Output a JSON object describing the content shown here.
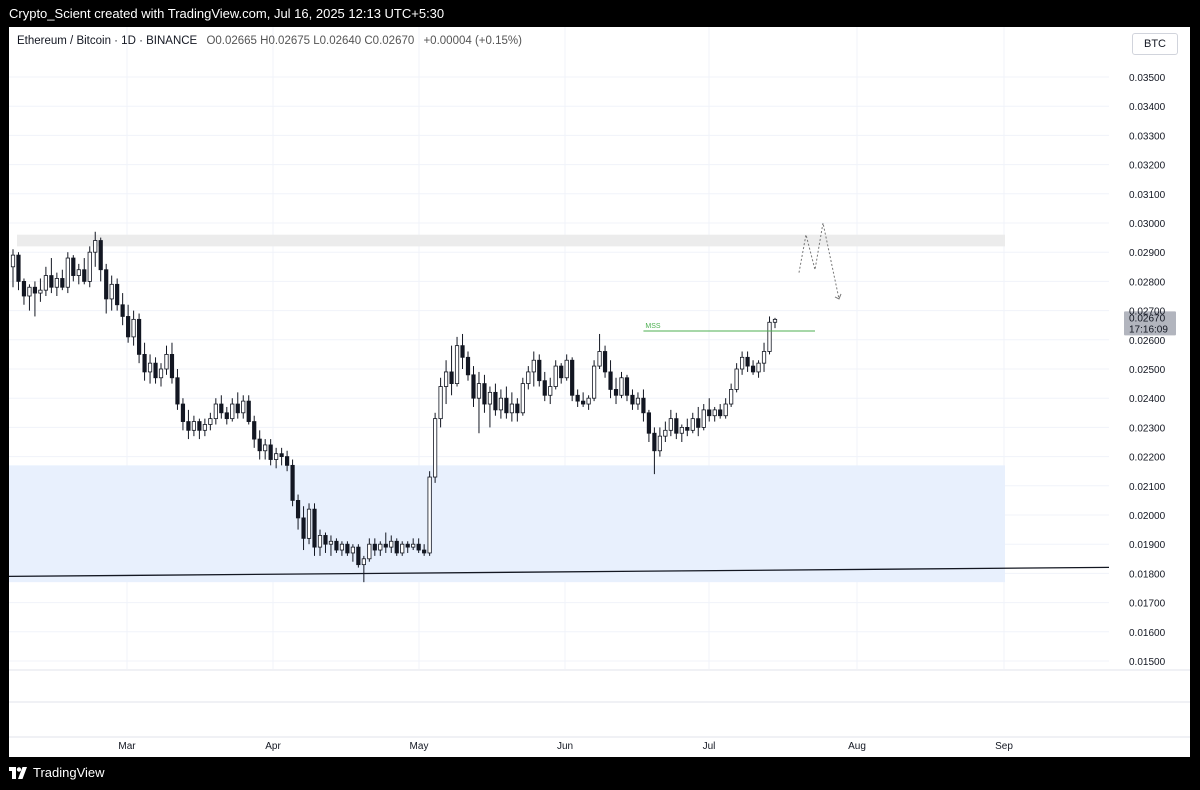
{
  "header": {
    "attribution": "Crypto_Scient created with TradingView.com, Jul 16, 2025 12:13 UTC+5:30"
  },
  "legend": {
    "symbol": "Ethereum / Bitcoin · 1D · BINANCE",
    "ohlc": "O0.02665 H0.02675 L0.02640 C0.02670",
    "change": "+0.00004 (+0.15%)"
  },
  "currency": "BTC",
  "price_label": {
    "price": "0.02670",
    "countdown": "17:16:09"
  },
  "annotation": {
    "mss": "MSS"
  },
  "footer": {
    "brand": "TradingView"
  },
  "colors": {
    "up_candle": "#ffffff",
    "down_candle": "#131722",
    "wick": "#131722",
    "zone_fill": "#e8f0fd",
    "zone_line": "#2962ff",
    "mss_line": "#4caf50",
    "grid": "#f0f3fa"
  },
  "chart_data": {
    "type": "candlestick",
    "title": "",
    "y_axis": {
      "ticks": [
        "0.03500",
        "0.03400",
        "0.03300",
        "0.03200",
        "0.03100",
        "0.03000",
        "0.02900",
        "0.02800",
        "0.02700",
        "0.02600",
        "0.02500",
        "0.02400",
        "0.02300",
        "0.02200",
        "0.02100",
        "0.02000",
        "0.01900",
        "0.01800",
        "0.01700",
        "0.01600",
        "0.01500"
      ],
      "range": [
        0.0148,
        0.0358
      ]
    },
    "x_axis": {
      "ticks": [
        "Mar",
        "Apr",
        "May",
        "Jun",
        "Jul",
        "Aug",
        "Sep"
      ]
    },
    "grid": true,
    "last_price": 0.0267,
    "candles": [
      {
        "o": 0.0285,
        "h": 0.0291,
        "l": 0.0278,
        "c": 0.0289
      },
      {
        "o": 0.0289,
        "h": 0.029,
        "l": 0.0277,
        "c": 0.028
      },
      {
        "o": 0.028,
        "h": 0.0281,
        "l": 0.0272,
        "c": 0.0275
      },
      {
        "o": 0.0275,
        "h": 0.0279,
        "l": 0.027,
        "c": 0.0278
      },
      {
        "o": 0.0278,
        "h": 0.028,
        "l": 0.0268,
        "c": 0.0276
      },
      {
        "o": 0.0276,
        "h": 0.0281,
        "l": 0.0273,
        "c": 0.0277
      },
      {
        "o": 0.0277,
        "h": 0.0285,
        "l": 0.0275,
        "c": 0.0282
      },
      {
        "o": 0.0282,
        "h": 0.0288,
        "l": 0.0276,
        "c": 0.0278
      },
      {
        "o": 0.0278,
        "h": 0.0283,
        "l": 0.0275,
        "c": 0.0281
      },
      {
        "o": 0.0281,
        "h": 0.0284,
        "l": 0.0277,
        "c": 0.0278
      },
      {
        "o": 0.0278,
        "h": 0.029,
        "l": 0.0276,
        "c": 0.0288
      },
      {
        "o": 0.0288,
        "h": 0.0289,
        "l": 0.028,
        "c": 0.0282
      },
      {
        "o": 0.0282,
        "h": 0.0286,
        "l": 0.0279,
        "c": 0.0284
      },
      {
        "o": 0.0284,
        "h": 0.0288,
        "l": 0.0279,
        "c": 0.028
      },
      {
        "o": 0.028,
        "h": 0.0292,
        "l": 0.0278,
        "c": 0.029
      },
      {
        "o": 0.029,
        "h": 0.0297,
        "l": 0.0285,
        "c": 0.0294
      },
      {
        "o": 0.0294,
        "h": 0.0295,
        "l": 0.028,
        "c": 0.0284
      },
      {
        "o": 0.0284,
        "h": 0.0286,
        "l": 0.0269,
        "c": 0.0274
      },
      {
        "o": 0.0274,
        "h": 0.0282,
        "l": 0.027,
        "c": 0.0279
      },
      {
        "o": 0.0279,
        "h": 0.0281,
        "l": 0.027,
        "c": 0.0272
      },
      {
        "o": 0.0272,
        "h": 0.0276,
        "l": 0.0265,
        "c": 0.0268
      },
      {
        "o": 0.0268,
        "h": 0.0272,
        "l": 0.0259,
        "c": 0.0261
      },
      {
        "o": 0.0261,
        "h": 0.027,
        "l": 0.0258,
        "c": 0.0267
      },
      {
        "o": 0.0267,
        "h": 0.0269,
        "l": 0.0252,
        "c": 0.0255
      },
      {
        "o": 0.0255,
        "h": 0.0259,
        "l": 0.0246,
        "c": 0.0249
      },
      {
        "o": 0.0249,
        "h": 0.0255,
        "l": 0.0245,
        "c": 0.0252
      },
      {
        "o": 0.0252,
        "h": 0.0254,
        "l": 0.0245,
        "c": 0.0247
      },
      {
        "o": 0.0247,
        "h": 0.0252,
        "l": 0.0244,
        "c": 0.025
      },
      {
        "o": 0.025,
        "h": 0.0258,
        "l": 0.0248,
        "c": 0.0255
      },
      {
        "o": 0.0255,
        "h": 0.0259,
        "l": 0.0245,
        "c": 0.0247
      },
      {
        "o": 0.0247,
        "h": 0.025,
        "l": 0.0236,
        "c": 0.0238
      },
      {
        "o": 0.0238,
        "h": 0.024,
        "l": 0.0229,
        "c": 0.0232
      },
      {
        "o": 0.0232,
        "h": 0.0236,
        "l": 0.0226,
        "c": 0.0229
      },
      {
        "o": 0.0229,
        "h": 0.0234,
        "l": 0.0227,
        "c": 0.0232
      },
      {
        "o": 0.0232,
        "h": 0.0233,
        "l": 0.0226,
        "c": 0.0229
      },
      {
        "o": 0.0229,
        "h": 0.0233,
        "l": 0.0227,
        "c": 0.0231
      },
      {
        "o": 0.0231,
        "h": 0.0235,
        "l": 0.0229,
        "c": 0.0233
      },
      {
        "o": 0.0233,
        "h": 0.024,
        "l": 0.0231,
        "c": 0.0238
      },
      {
        "o": 0.0238,
        "h": 0.0241,
        "l": 0.0233,
        "c": 0.0235
      },
      {
        "o": 0.0235,
        "h": 0.0237,
        "l": 0.0231,
        "c": 0.0233
      },
      {
        "o": 0.0233,
        "h": 0.024,
        "l": 0.0232,
        "c": 0.0238
      },
      {
        "o": 0.0238,
        "h": 0.0242,
        "l": 0.0233,
        "c": 0.0235
      },
      {
        "o": 0.0235,
        "h": 0.0241,
        "l": 0.0233,
        "c": 0.0239
      },
      {
        "o": 0.0239,
        "h": 0.0241,
        "l": 0.0231,
        "c": 0.0232
      },
      {
        "o": 0.0232,
        "h": 0.0234,
        "l": 0.0223,
        "c": 0.0226
      },
      {
        "o": 0.0226,
        "h": 0.0229,
        "l": 0.0219,
        "c": 0.0222
      },
      {
        "o": 0.0222,
        "h": 0.0226,
        "l": 0.0219,
        "c": 0.0224
      },
      {
        "o": 0.0224,
        "h": 0.0226,
        "l": 0.0217,
        "c": 0.0219
      },
      {
        "o": 0.0219,
        "h": 0.0223,
        "l": 0.0216,
        "c": 0.0221
      },
      {
        "o": 0.0221,
        "h": 0.0223,
        "l": 0.0217,
        "c": 0.022
      },
      {
        "o": 0.022,
        "h": 0.0222,
        "l": 0.0215,
        "c": 0.0217
      },
      {
        "o": 0.0217,
        "h": 0.0219,
        "l": 0.0203,
        "c": 0.0205
      },
      {
        "o": 0.0205,
        "h": 0.0207,
        "l": 0.0195,
        "c": 0.0199
      },
      {
        "o": 0.0199,
        "h": 0.0203,
        "l": 0.0188,
        "c": 0.0192
      },
      {
        "o": 0.0192,
        "h": 0.0204,
        "l": 0.019,
        "c": 0.0202
      },
      {
        "o": 0.0202,
        "h": 0.0204,
        "l": 0.0186,
        "c": 0.0189
      },
      {
        "o": 0.0189,
        "h": 0.0195,
        "l": 0.0186,
        "c": 0.0193
      },
      {
        "o": 0.0193,
        "h": 0.0194,
        "l": 0.0187,
        "c": 0.019
      },
      {
        "o": 0.019,
        "h": 0.0193,
        "l": 0.0186,
        "c": 0.0191
      },
      {
        "o": 0.0191,
        "h": 0.0192,
        "l": 0.0187,
        "c": 0.0188
      },
      {
        "o": 0.0188,
        "h": 0.0191,
        "l": 0.0186,
        "c": 0.019
      },
      {
        "o": 0.019,
        "h": 0.0191,
        "l": 0.0186,
        "c": 0.0187
      },
      {
        "o": 0.0187,
        "h": 0.019,
        "l": 0.0184,
        "c": 0.0189
      },
      {
        "o": 0.0189,
        "h": 0.019,
        "l": 0.0182,
        "c": 0.0183
      },
      {
        "o": 0.0183,
        "h": 0.0186,
        "l": 0.0177,
        "c": 0.0185
      },
      {
        "o": 0.0185,
        "h": 0.0192,
        "l": 0.0184,
        "c": 0.019
      },
      {
        "o": 0.019,
        "h": 0.0192,
        "l": 0.0186,
        "c": 0.0188
      },
      {
        "o": 0.0188,
        "h": 0.0191,
        "l": 0.0186,
        "c": 0.019
      },
      {
        "o": 0.019,
        "h": 0.0194,
        "l": 0.0187,
        "c": 0.0189
      },
      {
        "o": 0.0189,
        "h": 0.0193,
        "l": 0.0187,
        "c": 0.0191
      },
      {
        "o": 0.0191,
        "h": 0.0192,
        "l": 0.0186,
        "c": 0.0187
      },
      {
        "o": 0.0187,
        "h": 0.0191,
        "l": 0.0186,
        "c": 0.019
      },
      {
        "o": 0.019,
        "h": 0.0191,
        "l": 0.0187,
        "c": 0.0189
      },
      {
        "o": 0.0189,
        "h": 0.0192,
        "l": 0.0188,
        "c": 0.019
      },
      {
        "o": 0.019,
        "h": 0.0192,
        "l": 0.0187,
        "c": 0.0188
      },
      {
        "o": 0.0188,
        "h": 0.019,
        "l": 0.0186,
        "c": 0.0187
      },
      {
        "o": 0.0187,
        "h": 0.0215,
        "l": 0.0186,
        "c": 0.0213
      },
      {
        "o": 0.0213,
        "h": 0.0235,
        "l": 0.0211,
        "c": 0.0233
      },
      {
        "o": 0.0233,
        "h": 0.0247,
        "l": 0.023,
        "c": 0.0244
      },
      {
        "o": 0.0244,
        "h": 0.0253,
        "l": 0.0238,
        "c": 0.0249
      },
      {
        "o": 0.0249,
        "h": 0.0258,
        "l": 0.0241,
        "c": 0.0245
      },
      {
        "o": 0.0245,
        "h": 0.0261,
        "l": 0.0244,
        "c": 0.0258
      },
      {
        "o": 0.0258,
        "h": 0.0262,
        "l": 0.025,
        "c": 0.0254
      },
      {
        "o": 0.0254,
        "h": 0.0256,
        "l": 0.0246,
        "c": 0.0248
      },
      {
        "o": 0.0248,
        "h": 0.0251,
        "l": 0.0237,
        "c": 0.024
      },
      {
        "o": 0.024,
        "h": 0.0249,
        "l": 0.0228,
        "c": 0.0245
      },
      {
        "o": 0.0245,
        "h": 0.0248,
        "l": 0.0235,
        "c": 0.0238
      },
      {
        "o": 0.0238,
        "h": 0.0244,
        "l": 0.023,
        "c": 0.0242
      },
      {
        "o": 0.0242,
        "h": 0.0245,
        "l": 0.0234,
        "c": 0.0236
      },
      {
        "o": 0.0236,
        "h": 0.0243,
        "l": 0.0233,
        "c": 0.024
      },
      {
        "o": 0.024,
        "h": 0.0244,
        "l": 0.0233,
        "c": 0.0235
      },
      {
        "o": 0.0235,
        "h": 0.0242,
        "l": 0.0232,
        "c": 0.0238
      },
      {
        "o": 0.0238,
        "h": 0.024,
        "l": 0.0232,
        "c": 0.0235
      },
      {
        "o": 0.0235,
        "h": 0.0247,
        "l": 0.0234,
        "c": 0.0245
      },
      {
        "o": 0.0245,
        "h": 0.0251,
        "l": 0.0243,
        "c": 0.0249
      },
      {
        "o": 0.0249,
        "h": 0.0256,
        "l": 0.0244,
        "c": 0.0253
      },
      {
        "o": 0.0253,
        "h": 0.0255,
        "l": 0.0244,
        "c": 0.0246
      },
      {
        "o": 0.0246,
        "h": 0.0249,
        "l": 0.0239,
        "c": 0.0241
      },
      {
        "o": 0.0241,
        "h": 0.0247,
        "l": 0.0238,
        "c": 0.0244
      },
      {
        "o": 0.0244,
        "h": 0.0253,
        "l": 0.0243,
        "c": 0.0251
      },
      {
        "o": 0.0251,
        "h": 0.0252,
        "l": 0.0245,
        "c": 0.0247
      },
      {
        "o": 0.0247,
        "h": 0.0255,
        "l": 0.0246,
        "c": 0.0253
      },
      {
        "o": 0.0253,
        "h": 0.0254,
        "l": 0.0239,
        "c": 0.0241
      },
      {
        "o": 0.0241,
        "h": 0.0243,
        "l": 0.0237,
        "c": 0.0239
      },
      {
        "o": 0.0239,
        "h": 0.0242,
        "l": 0.0237,
        "c": 0.0238
      },
      {
        "o": 0.0238,
        "h": 0.0241,
        "l": 0.0236,
        "c": 0.024
      },
      {
        "o": 0.024,
        "h": 0.0253,
        "l": 0.0239,
        "c": 0.0251
      },
      {
        "o": 0.0251,
        "h": 0.0262,
        "l": 0.025,
        "c": 0.0256
      },
      {
        "o": 0.0256,
        "h": 0.0258,
        "l": 0.0247,
        "c": 0.0249
      },
      {
        "o": 0.0249,
        "h": 0.0253,
        "l": 0.024,
        "c": 0.0243
      },
      {
        "o": 0.0243,
        "h": 0.0247,
        "l": 0.0238,
        "c": 0.0241
      },
      {
        "o": 0.0241,
        "h": 0.0249,
        "l": 0.024,
        "c": 0.0247
      },
      {
        "o": 0.0247,
        "h": 0.0248,
        "l": 0.0239,
        "c": 0.0241
      },
      {
        "o": 0.0241,
        "h": 0.0243,
        "l": 0.0236,
        "c": 0.0238
      },
      {
        "o": 0.0238,
        "h": 0.0242,
        "l": 0.0236,
        "c": 0.024
      },
      {
        "o": 0.024,
        "h": 0.0243,
        "l": 0.0232,
        "c": 0.0235
      },
      {
        "o": 0.0235,
        "h": 0.0236,
        "l": 0.0225,
        "c": 0.0228
      },
      {
        "o": 0.0228,
        "h": 0.023,
        "l": 0.0214,
        "c": 0.0222
      },
      {
        "o": 0.0222,
        "h": 0.023,
        "l": 0.022,
        "c": 0.0227
      },
      {
        "o": 0.0227,
        "h": 0.0232,
        "l": 0.0225,
        "c": 0.0229
      },
      {
        "o": 0.0229,
        "h": 0.0236,
        "l": 0.0227,
        "c": 0.0233
      },
      {
        "o": 0.0233,
        "h": 0.0235,
        "l": 0.0226,
        "c": 0.0228
      },
      {
        "o": 0.0228,
        "h": 0.0231,
        "l": 0.0225,
        "c": 0.023
      },
      {
        "o": 0.023,
        "h": 0.0233,
        "l": 0.0227,
        "c": 0.0229
      },
      {
        "o": 0.0229,
        "h": 0.0235,
        "l": 0.0228,
        "c": 0.0233
      },
      {
        "o": 0.0233,
        "h": 0.0237,
        "l": 0.0227,
        "c": 0.023
      },
      {
        "o": 0.023,
        "h": 0.0238,
        "l": 0.0229,
        "c": 0.0236
      },
      {
        "o": 0.0236,
        "h": 0.024,
        "l": 0.0232,
        "c": 0.0234
      },
      {
        "o": 0.0234,
        "h": 0.0237,
        "l": 0.0232,
        "c": 0.0236
      },
      {
        "o": 0.0236,
        "h": 0.0238,
        "l": 0.0233,
        "c": 0.0234
      },
      {
        "o": 0.0234,
        "h": 0.024,
        "l": 0.0233,
        "c": 0.0238
      },
      {
        "o": 0.0238,
        "h": 0.0245,
        "l": 0.0237,
        "c": 0.0243
      },
      {
        "o": 0.0243,
        "h": 0.0252,
        "l": 0.0242,
        "c": 0.025
      },
      {
        "o": 0.025,
        "h": 0.0256,
        "l": 0.0248,
        "c": 0.0254
      },
      {
        "o": 0.0254,
        "h": 0.0256,
        "l": 0.0249,
        "c": 0.0251
      },
      {
        "o": 0.0251,
        "h": 0.0253,
        "l": 0.0248,
        "c": 0.0249
      },
      {
        "o": 0.0249,
        "h": 0.0253,
        "l": 0.0247,
        "c": 0.0252
      },
      {
        "o": 0.0252,
        "h": 0.0259,
        "l": 0.0249,
        "c": 0.0256
      },
      {
        "o": 0.0256,
        "h": 0.0268,
        "l": 0.0255,
        "c": 0.0266
      },
      {
        "o": 0.0266,
        "h": 0.02675,
        "l": 0.0264,
        "c": 0.0267
      }
    ],
    "zones": [
      {
        "label": "",
        "y_top": 0.0296,
        "y_bottom": 0.0292,
        "fill": "#ececec"
      },
      {
        "label": "",
        "y_top": 0.0217,
        "y_bottom": 0.0177,
        "fill": "#e8f0fd"
      }
    ],
    "mss_level": 0.0263
  }
}
